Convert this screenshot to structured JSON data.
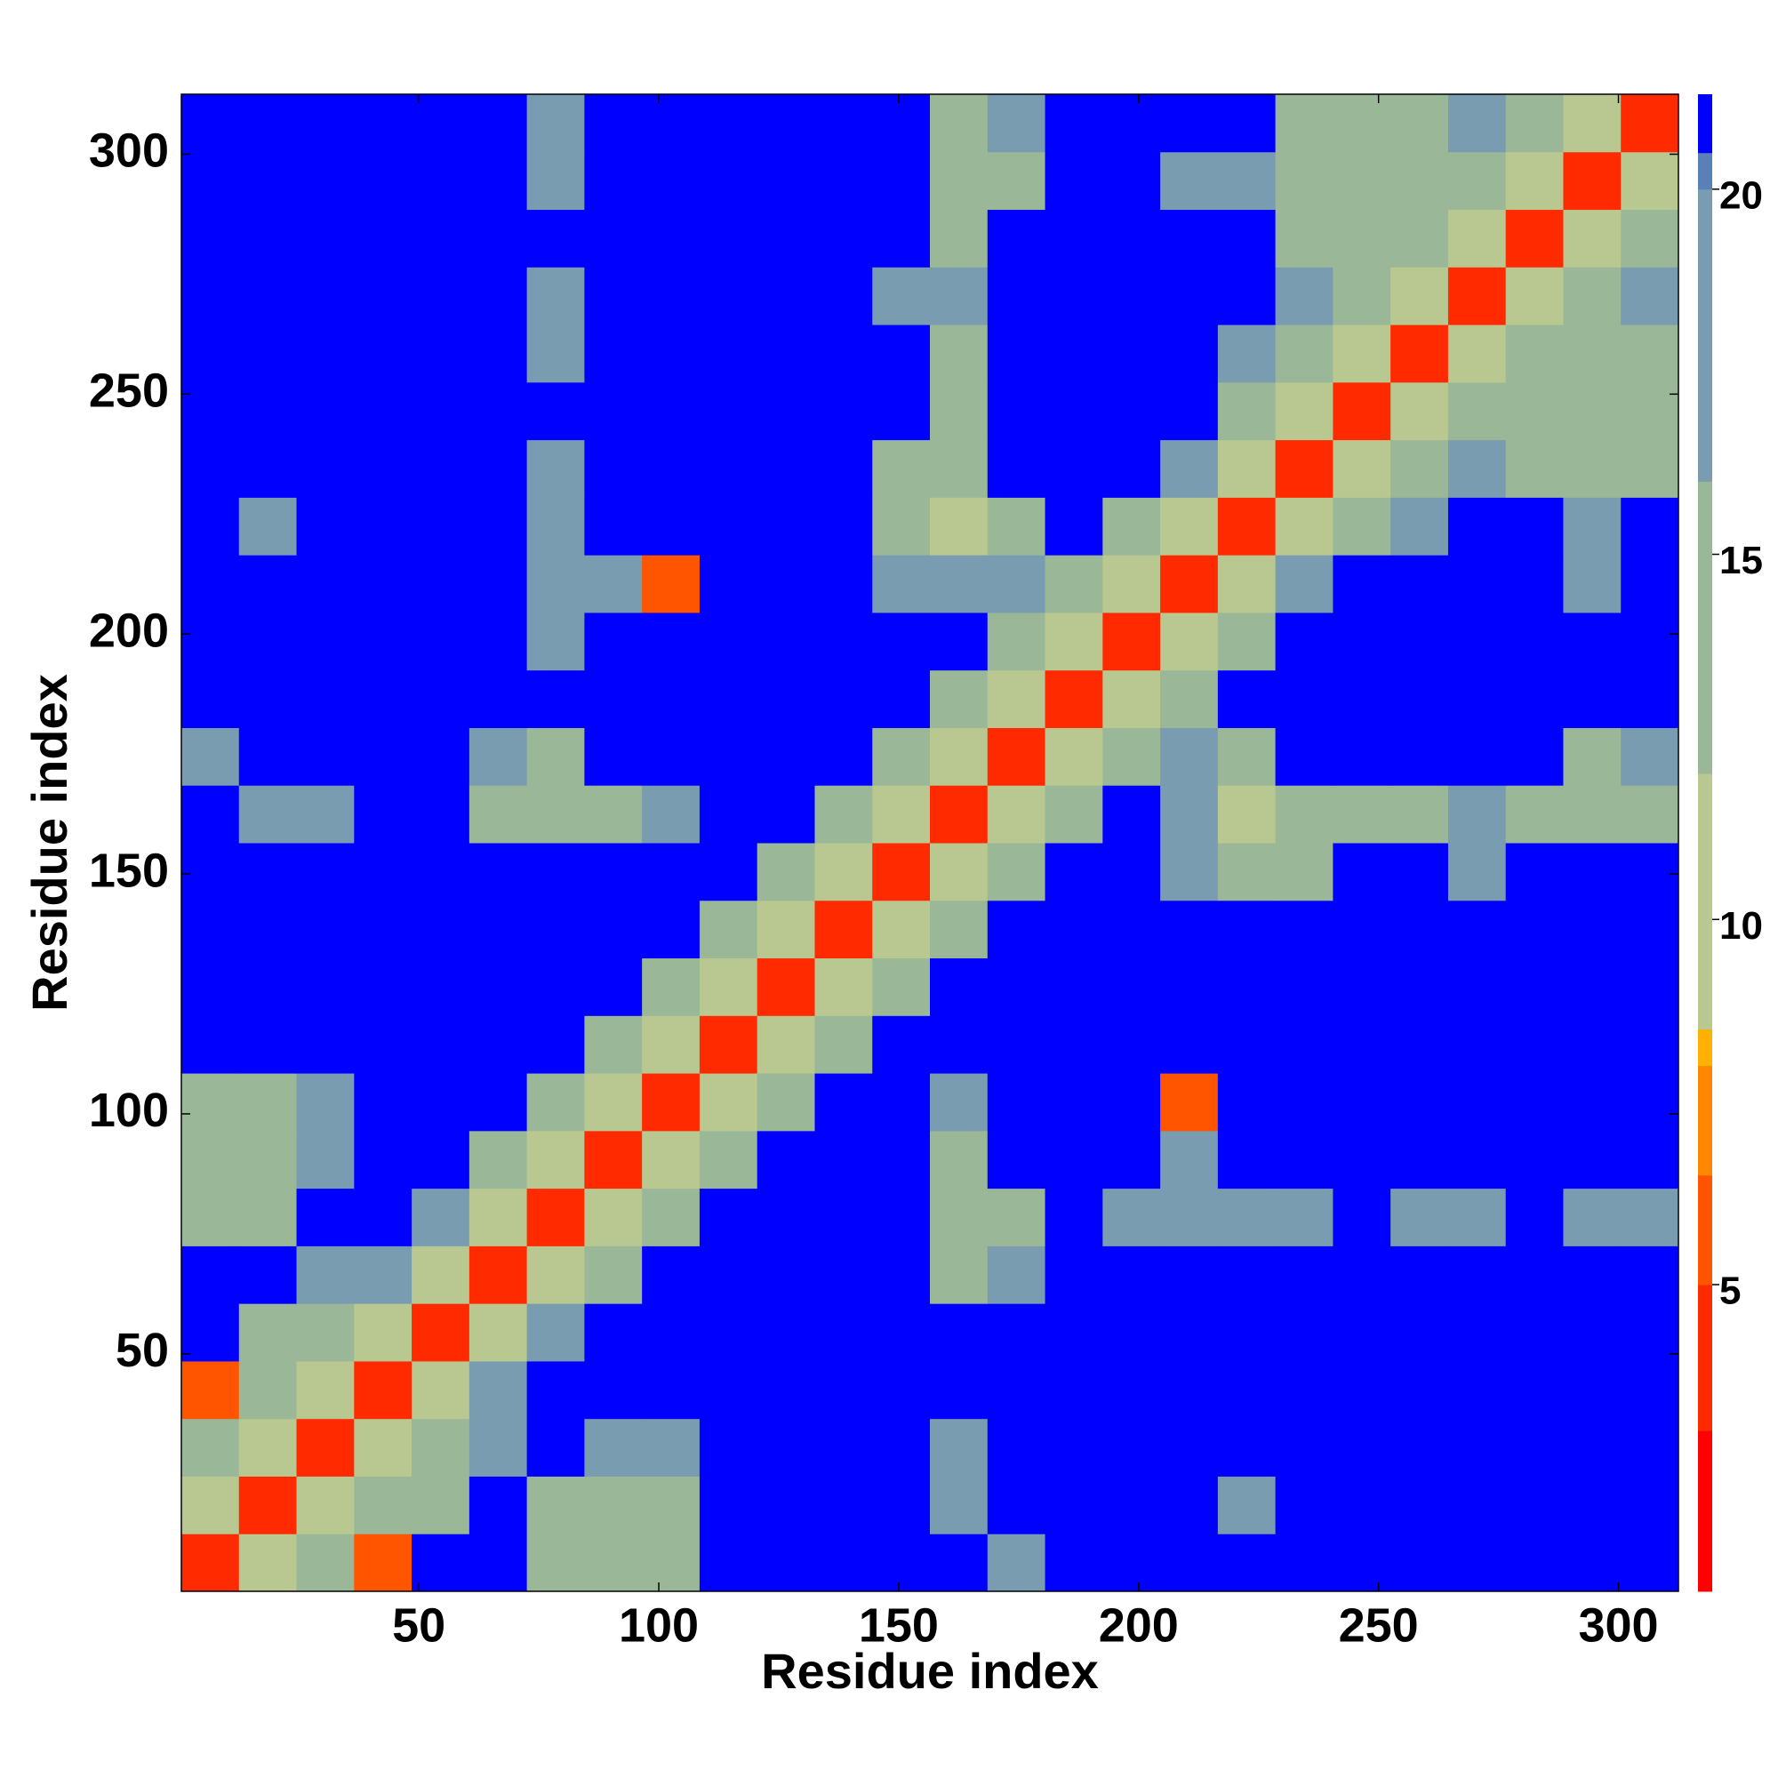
{
  "chart_data": {
    "type": "heatmap",
    "xlabel": "Residue index",
    "ylabel": "Residue index",
    "xlim": [
      0.5,
      312.5
    ],
    "ylim": [
      0.5,
      312.5
    ],
    "xticks": [
      50,
      100,
      150,
      200,
      250,
      300
    ],
    "yticks": [
      50,
      100,
      150,
      200,
      250,
      300
    ],
    "zlim": [
      0.8,
      21.3
    ],
    "zticks": [
      5,
      10,
      15,
      20
    ],
    "colorscale": [
      {
        "value": 0.8,
        "color": "#ff0000"
      },
      {
        "value": 3,
        "color": "#ff2a00"
      },
      {
        "value": 5,
        "color": "#ff5500"
      },
      {
        "value": 6.5,
        "color": "#ff8800"
      },
      {
        "value": 8,
        "color": "#ffb000"
      },
      {
        "value": 8.5,
        "color": "#b8c890"
      },
      {
        "value": 12,
        "color": "#9ab898"
      },
      {
        "value": 16,
        "color": "#7a9cb0"
      },
      {
        "value": 20,
        "color": "#5a80b8"
      },
      {
        "value": 20.5,
        "color": "#0000ff"
      }
    ],
    "z": [
      [
        3,
        9,
        14,
        5,
        22,
        22,
        15,
        13,
        13,
        22,
        22,
        22,
        22,
        22,
        19,
        22,
        22,
        22,
        22,
        22,
        22,
        22,
        22,
        22,
        22,
        22
      ],
      [
        9,
        3,
        9,
        13,
        15,
        22,
        14,
        13,
        14,
        22,
        22,
        22,
        22,
        19,
        22,
        22,
        22,
        22,
        19,
        22,
        22,
        22,
        22,
        22,
        22,
        22
      ],
      [
        14,
        9,
        3,
        9,
        12,
        16,
        22,
        16,
        17,
        22,
        22,
        22,
        22,
        19,
        22,
        22,
        22,
        22,
        22,
        22,
        22,
        22,
        22,
        22,
        22,
        22
      ],
      [
        5,
        13,
        9,
        3,
        9,
        16,
        22,
        22,
        22,
        22,
        22,
        22,
        22,
        22,
        22,
        22,
        22,
        22,
        22,
        22,
        22,
        22,
        22,
        22,
        22,
        22
      ],
      [
        22,
        15,
        12,
        9,
        3,
        9,
        18,
        22,
        22,
        22,
        22,
        22,
        22,
        22,
        22,
        22,
        22,
        22,
        22,
        22,
        22,
        22,
        22,
        22,
        22,
        22
      ],
      [
        22,
        22,
        16,
        16,
        9,
        3,
        9,
        12,
        22,
        22,
        22,
        22,
        22,
        14,
        16,
        22,
        22,
        22,
        22,
        22,
        22,
        22,
        22,
        22,
        22,
        22
      ],
      [
        15,
        14,
        22,
        22,
        18,
        9,
        3,
        9,
        13,
        22,
        22,
        22,
        22,
        12,
        14,
        22,
        18,
        16,
        16,
        18,
        22,
        18,
        18,
        22,
        18,
        18
      ],
      [
        13,
        13,
        16,
        22,
        22,
        12,
        9,
        3,
        9,
        13,
        22,
        22,
        22,
        15,
        22,
        22,
        22,
        17,
        22,
        22,
        22,
        22,
        22,
        22,
        22,
        22
      ],
      [
        13,
        14,
        17,
        22,
        22,
        22,
        13,
        9,
        3,
        9,
        15,
        22,
        22,
        16,
        22,
        22,
        22,
        5,
        22,
        22,
        22,
        22,
        22,
        22,
        22,
        22
      ],
      [
        22,
        22,
        22,
        22,
        22,
        22,
        22,
        13,
        9,
        3,
        9,
        15,
        22,
        22,
        22,
        22,
        22,
        22,
        22,
        22,
        22,
        22,
        22,
        22,
        22,
        22
      ],
      [
        22,
        22,
        22,
        22,
        22,
        22,
        22,
        22,
        15,
        9,
        3,
        9,
        13,
        22,
        22,
        22,
        22,
        22,
        22,
        22,
        22,
        22,
        22,
        22,
        22,
        22
      ],
      [
        22,
        22,
        22,
        22,
        22,
        22,
        22,
        22,
        22,
        15,
        9,
        3,
        9,
        14,
        22,
        22,
        22,
        22,
        22,
        22,
        22,
        22,
        22,
        22,
        22,
        22
      ],
      [
        22,
        22,
        22,
        22,
        22,
        22,
        22,
        22,
        22,
        22,
        13,
        9,
        3,
        9,
        15,
        22,
        22,
        16,
        13,
        14,
        22,
        22,
        16,
        22,
        22,
        22
      ],
      [
        22,
        19,
        19,
        22,
        22,
        14,
        12,
        15,
        16,
        22,
        22,
        14,
        9,
        3,
        9,
        13,
        22,
        16,
        11,
        13,
        13,
        14,
        16,
        15,
        14,
        15
      ],
      [
        19,
        22,
        22,
        22,
        22,
        16,
        14,
        22,
        22,
        22,
        22,
        22,
        15,
        9,
        3,
        9,
        12,
        16,
        14,
        22,
        22,
        22,
        22,
        22,
        15,
        16
      ],
      [
        22,
        22,
        22,
        22,
        22,
        22,
        22,
        22,
        22,
        22,
        22,
        22,
        22,
        13,
        9,
        3,
        9,
        12,
        22,
        22,
        22,
        22,
        22,
        22,
        22,
        22
      ],
      [
        22,
        22,
        22,
        22,
        22,
        22,
        18,
        22,
        22,
        22,
        22,
        22,
        22,
        22,
        12,
        9,
        3,
        9,
        12,
        22,
        22,
        22,
        22,
        22,
        22,
        22
      ],
      [
        22,
        22,
        22,
        22,
        22,
        22,
        16,
        17,
        5,
        22,
        22,
        22,
        16,
        16,
        16,
        12,
        9,
        3,
        9,
        16,
        22,
        22,
        22,
        22,
        18,
        22
      ],
      [
        22,
        19,
        22,
        22,
        22,
        22,
        16,
        22,
        22,
        22,
        22,
        22,
        13,
        11,
        14,
        22,
        12,
        9,
        3,
        9,
        12,
        16,
        22,
        22,
        17,
        22
      ],
      [
        22,
        22,
        22,
        22,
        22,
        22,
        18,
        22,
        22,
        22,
        22,
        22,
        14,
        13,
        22,
        22,
        22,
        16,
        9,
        3,
        9,
        12,
        16,
        14,
        13,
        13
      ],
      [
        22,
        22,
        22,
        22,
        22,
        22,
        22,
        22,
        22,
        22,
        22,
        22,
        22,
        13,
        22,
        22,
        22,
        22,
        12,
        9,
        3,
        9,
        12,
        14,
        13,
        14
      ],
      [
        22,
        22,
        22,
        22,
        22,
        22,
        18,
        22,
        22,
        22,
        22,
        22,
        22,
        14,
        22,
        22,
        22,
        22,
        16,
        12,
        9,
        3,
        9,
        12,
        14,
        15
      ],
      [
        22,
        22,
        22,
        22,
        22,
        22,
        18,
        22,
        22,
        22,
        22,
        22,
        16,
        16,
        22,
        22,
        22,
        22,
        22,
        16,
        12,
        9,
        3,
        9,
        12,
        16
      ],
      [
        22,
        22,
        22,
        22,
        22,
        22,
        22,
        22,
        22,
        22,
        22,
        22,
        22,
        15,
        22,
        22,
        22,
        22,
        22,
        14,
        14,
        12,
        9,
        3,
        9,
        12
      ],
      [
        22,
        22,
        22,
        22,
        22,
        22,
        18,
        22,
        22,
        22,
        22,
        22,
        22,
        14,
        15,
        22,
        22,
        18,
        17,
        13,
        13,
        14,
        12,
        9,
        3,
        9
      ],
      [
        22,
        22,
        22,
        22,
        22,
        22,
        18,
        22,
        22,
        22,
        22,
        22,
        22,
        15,
        16,
        22,
        22,
        22,
        22,
        13,
        14,
        15,
        16,
        12,
        9,
        3
      ]
    ]
  }
}
